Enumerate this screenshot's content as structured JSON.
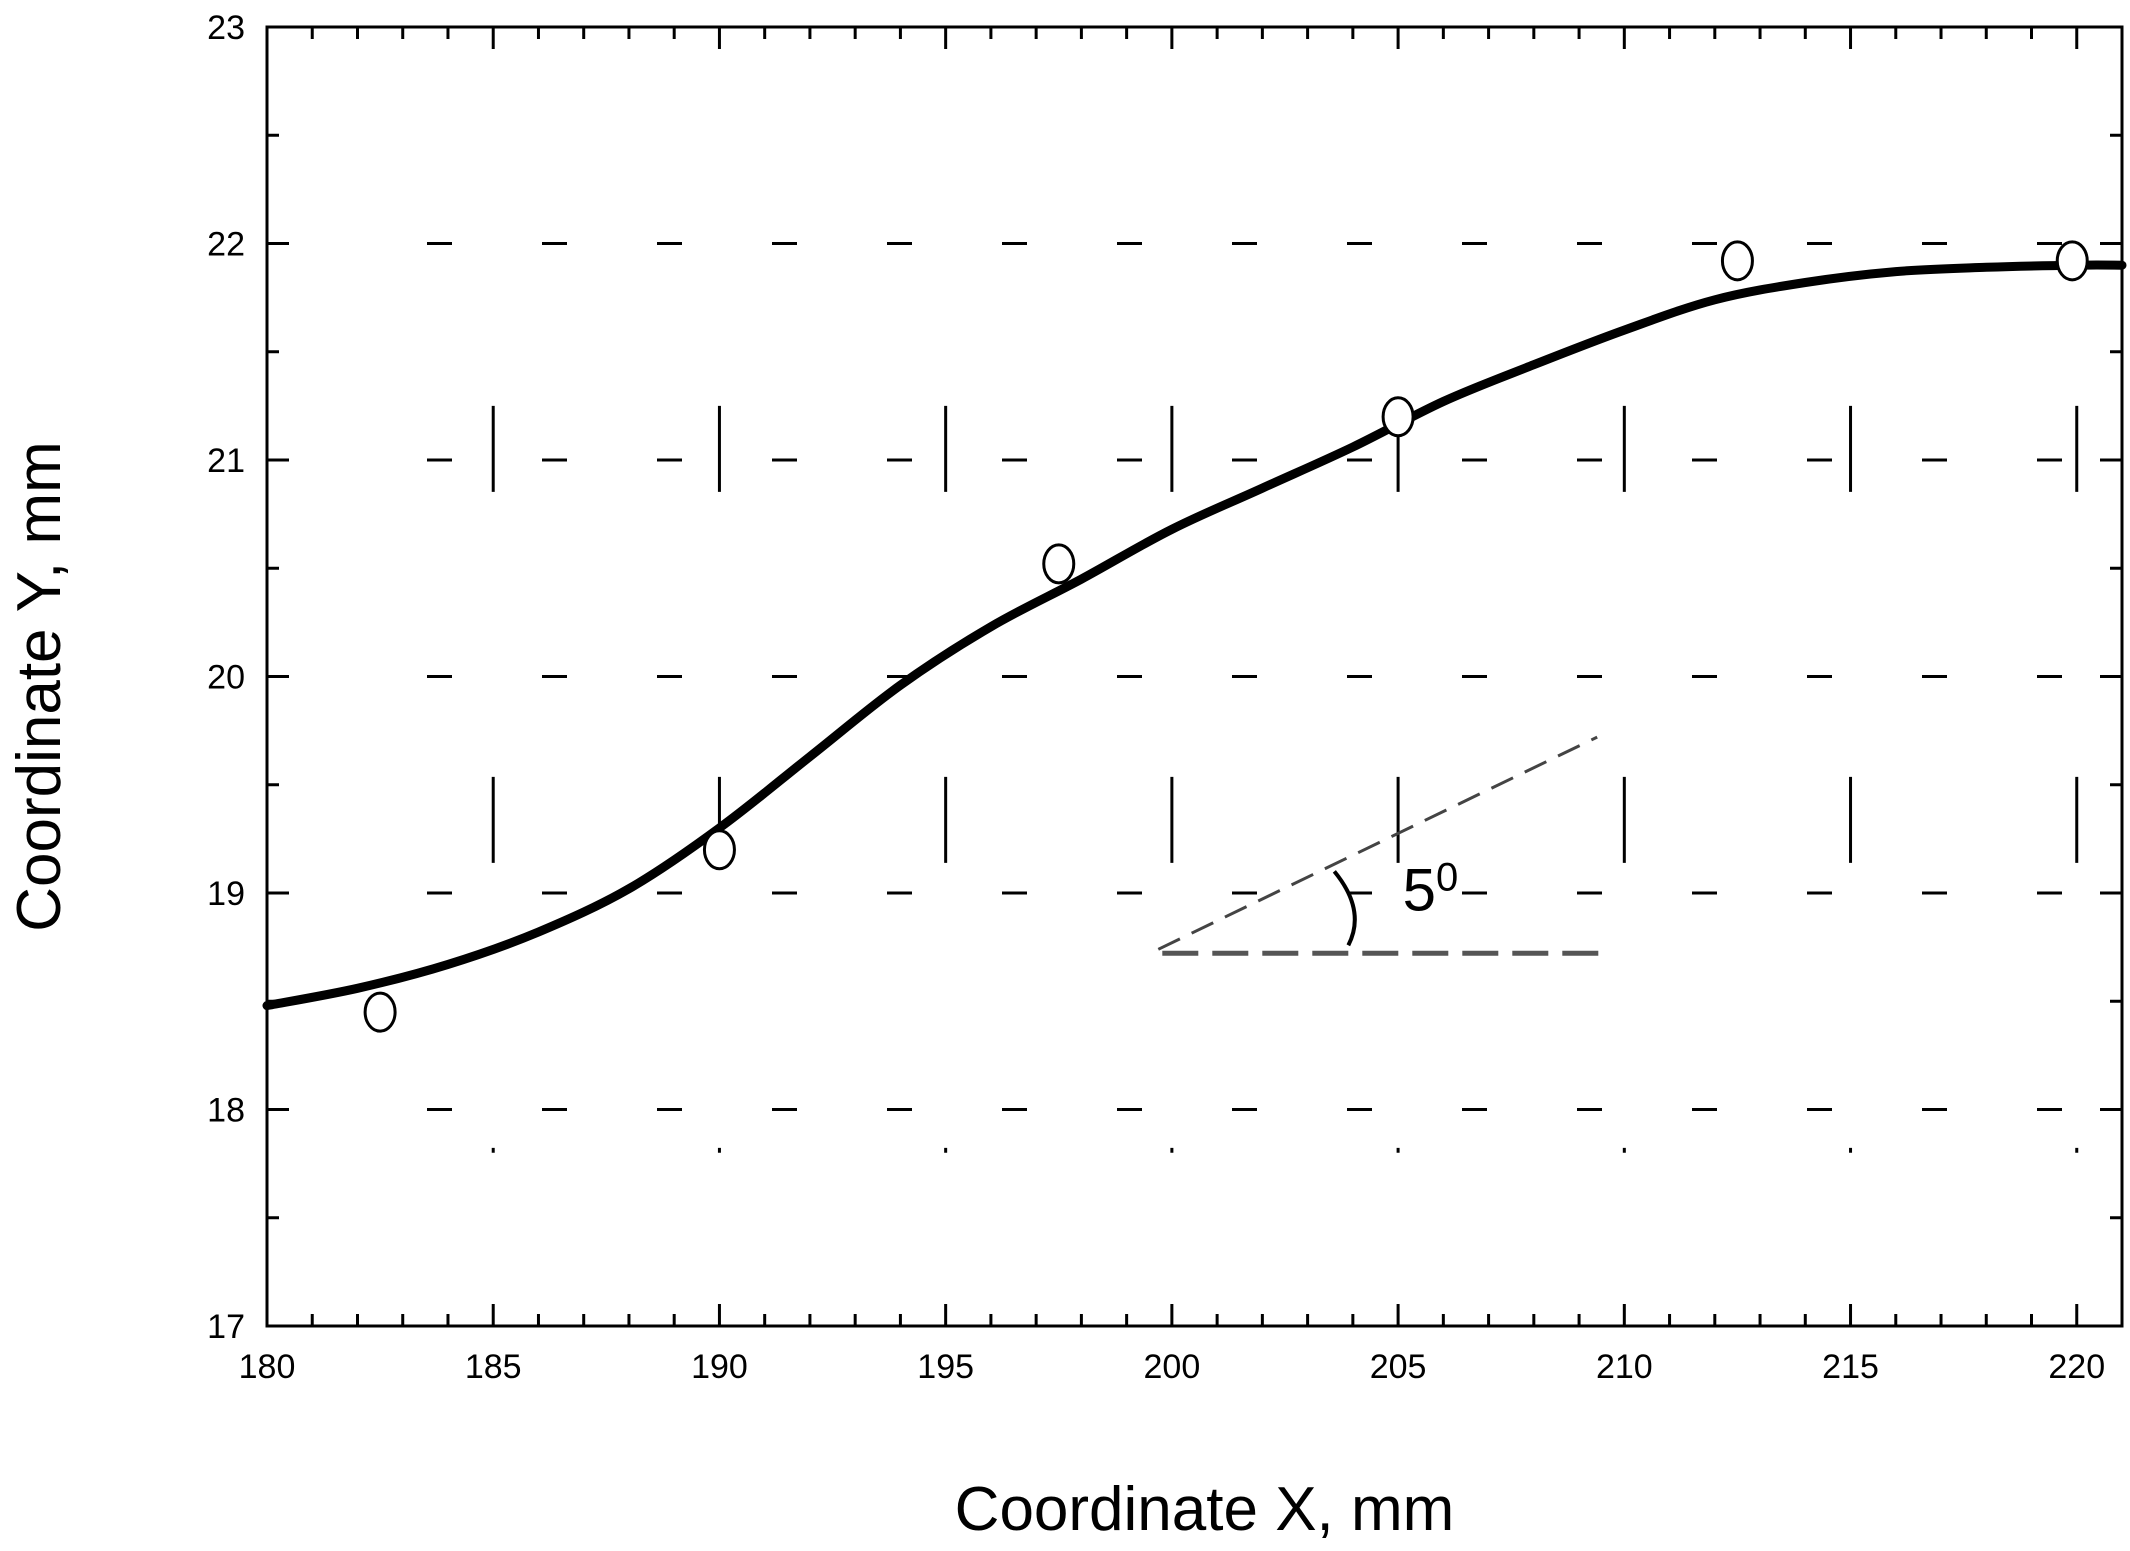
{
  "chart_data": {
    "type": "scatter",
    "title": "",
    "xlabel": "Coordinate X, mm",
    "ylabel": "Coordinate Y, mm",
    "xlim": [
      180,
      221
    ],
    "ylim": [
      17,
      23
    ],
    "x_ticks": [
      "180",
      "185",
      "190",
      "195",
      "200",
      "205",
      "210",
      "215",
      "220"
    ],
    "y_ticks": [
      "17",
      "18",
      "19",
      "20",
      "21",
      "22",
      "23"
    ],
    "grid": "dashed",
    "series": [
      {
        "kind": "scatter",
        "marker": "open-circle",
        "x": [
          182.5,
          190.0,
          197.5,
          205.0,
          212.5,
          219.9
        ],
        "y": [
          18.45,
          19.2,
          20.52,
          21.2,
          21.92,
          21.92
        ]
      },
      {
        "kind": "line",
        "style": "solid-thick",
        "x": [
          180,
          182,
          184,
          186,
          188,
          190,
          192,
          194,
          196,
          198,
          200,
          202,
          204,
          206,
          208,
          210,
          212,
          214,
          216,
          218,
          220,
          221
        ],
        "y": [
          18.48,
          18.56,
          18.67,
          18.82,
          19.02,
          19.3,
          19.63,
          19.96,
          20.23,
          20.45,
          20.68,
          20.87,
          21.06,
          21.27,
          21.44,
          21.6,
          21.74,
          21.82,
          21.87,
          21.89,
          21.9,
          21.9
        ]
      }
    ],
    "annotations": [
      {
        "text": "5",
        "superscript": "0"
      }
    ]
  }
}
